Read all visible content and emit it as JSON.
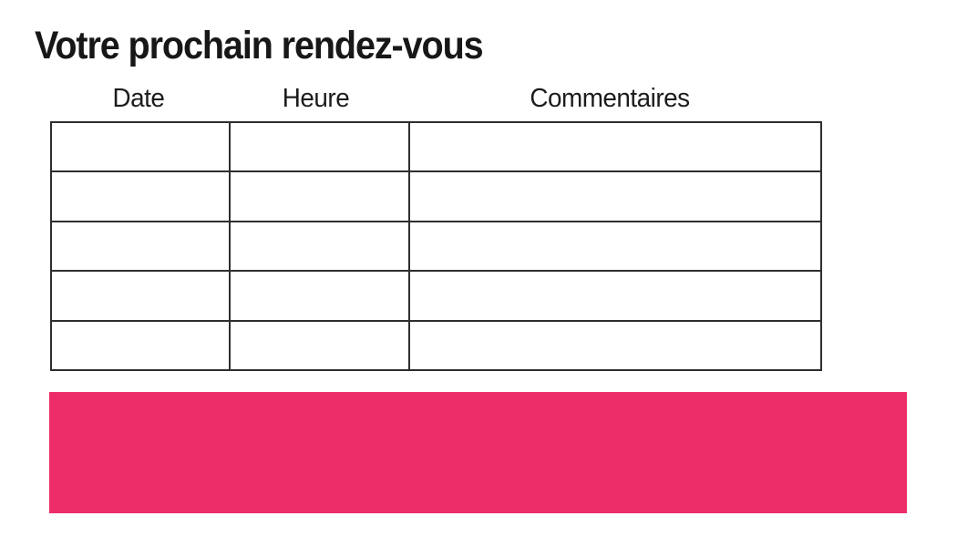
{
  "page": {
    "title": "Votre prochain rendez-vous",
    "background": "#ffffff"
  },
  "table": {
    "headers": [
      {
        "label": "Date"
      },
      {
        "label": "Heure"
      },
      {
        "label": "Commentaires"
      }
    ],
    "rows": [
      [
        "",
        "",
        ""
      ],
      [
        "",
        "",
        ""
      ],
      [
        "",
        "",
        ""
      ],
      [
        "",
        "",
        ""
      ],
      [
        "",
        "",
        ""
      ]
    ]
  },
  "banner": {
    "text": "",
    "color": "#ED2D68"
  },
  "colors": {
    "accent_pink": "#ED2D68",
    "table_border": "#2e2e2e",
    "text": "#171717"
  }
}
